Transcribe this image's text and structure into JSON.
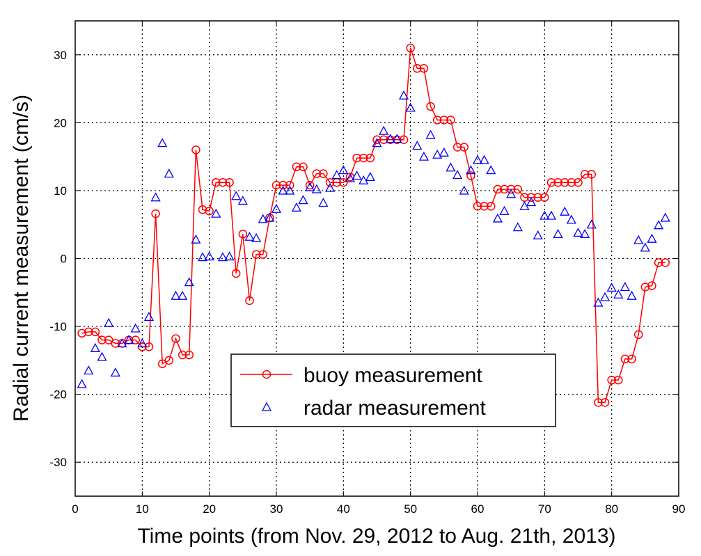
{
  "chart_data": {
    "type": "line",
    "xlabel": "Time points (from Nov. 29, 2012 to Aug. 21th, 2013)",
    "ylabel": "Radial current measurement (cm/s)",
    "xlim": [
      0,
      90
    ],
    "ylim": [
      -35,
      35
    ],
    "xticks": [
      0,
      10,
      20,
      30,
      40,
      50,
      60,
      70,
      80,
      90
    ],
    "yticks": [
      -30,
      -20,
      -10,
      0,
      10,
      20,
      30
    ],
    "xtick_labels": [
      "0",
      "10",
      "20",
      "30",
      "40",
      "50",
      "60",
      "70",
      "80",
      "90"
    ],
    "ytick_labels": [
      "-30",
      "-20",
      "-10",
      "0",
      "10",
      "20",
      "30"
    ],
    "grid": true,
    "legend_position": "lower-center",
    "series": [
      {
        "name": "buoy measurement",
        "color": "#ff0000",
        "marker": "circle",
        "line": true,
        "x": [
          1,
          2,
          3,
          4,
          5,
          6,
          7,
          8,
          9,
          10,
          11,
          12,
          13,
          14,
          15,
          16,
          17,
          18,
          19,
          20,
          21,
          22,
          23,
          24,
          25,
          26,
          27,
          28,
          29,
          30,
          31,
          32,
          33,
          34,
          35,
          36,
          37,
          38,
          39,
          40,
          41,
          42,
          43,
          44,
          45,
          46,
          47,
          48,
          49,
          50,
          51,
          52,
          53,
          54,
          55,
          56,
          57,
          58,
          59,
          60,
          61,
          62,
          63,
          64,
          65,
          66,
          67,
          68,
          69,
          70,
          71,
          72,
          73,
          74,
          75,
          76,
          77,
          78,
          79,
          80,
          81,
          82,
          83,
          84,
          85,
          86,
          87,
          88
        ],
        "y": [
          -11,
          -10.8,
          -10.8,
          -12,
          -12,
          -12.5,
          -12.5,
          -12,
          -12,
          -13,
          -13,
          6.6,
          -15.5,
          -15,
          -11.8,
          -14.2,
          -14.2,
          16,
          7.2,
          7,
          11.2,
          11.2,
          11.2,
          -2.2,
          3.6,
          -6.2,
          0.6,
          0.6,
          6,
          10.8,
          10.8,
          10.8,
          13.5,
          13.5,
          10.8,
          12.5,
          12.5,
          11.2,
          11.2,
          11.2,
          12,
          14.8,
          14.8,
          14.8,
          17.5,
          17.5,
          17.5,
          17.5,
          17.5,
          31,
          28,
          28,
          22.4,
          20.4,
          20.4,
          20.4,
          16.4,
          16.4,
          12.2,
          7.7,
          7.7,
          7.7,
          10.2,
          10.2,
          10.2,
          10.2,
          9,
          9,
          9,
          9,
          11.2,
          11.2,
          11.2,
          11.2,
          11.2,
          12.4,
          12.4,
          -21.2,
          -21.2,
          -17.9,
          -17.9,
          -14.8,
          -14.8,
          -11.2,
          -4.2,
          -4,
          -0.6,
          -0.6
        ]
      },
      {
        "name": "radar measurement",
        "color": "#0000ff",
        "marker": "triangle",
        "line": false,
        "x": [
          1,
          2,
          3,
          4,
          5,
          6,
          7,
          8,
          9,
          10,
          11,
          12,
          13,
          14,
          15,
          16,
          17,
          18,
          19,
          20,
          21,
          22,
          23,
          24,
          25,
          26,
          27,
          28,
          29,
          30,
          31,
          32,
          33,
          34,
          35,
          36,
          37,
          38,
          39,
          40,
          41,
          42,
          43,
          44,
          45,
          46,
          47,
          48,
          49,
          50,
          51,
          52,
          53,
          54,
          55,
          56,
          57,
          58,
          59,
          60,
          61,
          62,
          63,
          64,
          65,
          66,
          67,
          68,
          69,
          70,
          71,
          72,
          73,
          74,
          75,
          76,
          77,
          78,
          79,
          80,
          81,
          82,
          83,
          84,
          85,
          86,
          87,
          88
        ],
        "y": [
          -18.5,
          -16.5,
          -13.2,
          -14.5,
          -9.5,
          -16.8,
          -12.5,
          -12,
          -10.3,
          -12.5,
          -8.6,
          9,
          17,
          12.5,
          -5.5,
          -5.5,
          -3.5,
          2.8,
          0.2,
          0.3,
          6.6,
          0.2,
          0.3,
          9.2,
          8.5,
          3.2,
          3,
          5.8,
          6,
          7.3,
          10,
          10,
          7.5,
          8.6,
          10.5,
          10.2,
          8.2,
          10.4,
          12.3,
          13,
          11.8,
          12.2,
          11.5,
          12,
          17,
          18.8,
          17.6,
          17.6,
          24,
          22.2,
          16.6,
          15,
          18.2,
          15.3,
          15.6,
          13.4,
          12.3,
          10,
          13,
          14.5,
          14.5,
          13,
          5.9,
          7,
          9.5,
          4.6,
          7.7,
          8.3,
          3.4,
          6.3,
          6.3,
          3.6,
          6.9,
          5.7,
          3.8,
          3.6,
          5,
          -6.5,
          -5.7,
          -4.3,
          -5.3,
          -4.2,
          -5.5,
          2.7,
          1.6,
          2.9,
          4.9,
          6
        ]
      }
    ]
  }
}
